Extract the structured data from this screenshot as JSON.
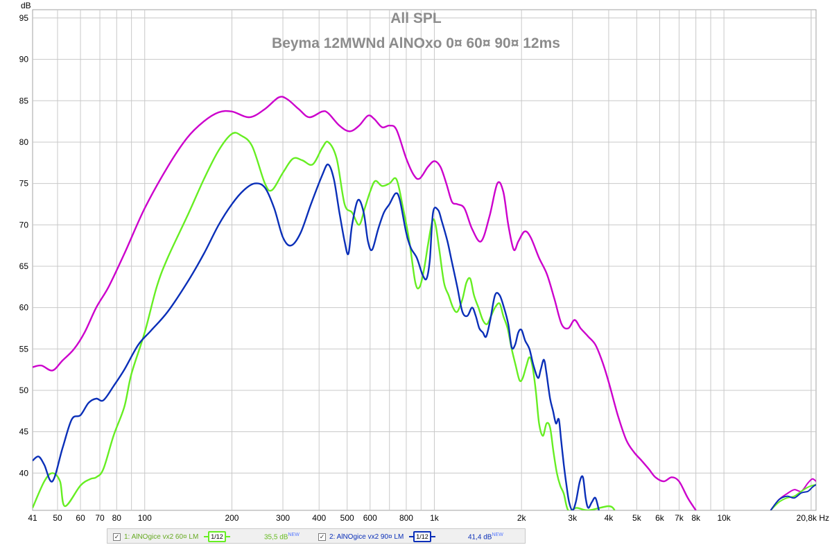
{
  "chart_data": {
    "type": "line",
    "title": "All SPL",
    "subtitle": "Beyma 12MWNd AlNOxo 0¤ 60¤ 90¤ 12ms",
    "ylabel": "dB",
    "xunit": "Hz",
    "xscale": "log",
    "xlim": [
      41,
      20800
    ],
    "ylim": [
      35.5,
      96
    ],
    "grid": true,
    "legend_position": "bottom-left",
    "yticks": [
      95,
      90,
      85,
      80,
      75,
      70,
      65,
      60,
      55,
      50,
      45,
      40
    ],
    "xticks": [
      {
        "v": 41,
        "t": "41"
      },
      {
        "v": 50,
        "t": "50"
      },
      {
        "v": 60,
        "t": "60"
      },
      {
        "v": 70,
        "t": "70"
      },
      {
        "v": 80,
        "t": "80"
      },
      {
        "v": 100,
        "t": "100"
      },
      {
        "v": 200,
        "t": "200"
      },
      {
        "v": 300,
        "t": "300"
      },
      {
        "v": 400,
        "t": "400"
      },
      {
        "v": 500,
        "t": "500"
      },
      {
        "v": 600,
        "t": "600"
      },
      {
        "v": 800,
        "t": "800"
      },
      {
        "v": 1000,
        "t": "1k"
      },
      {
        "v": 2000,
        "t": "2k"
      },
      {
        "v": 3000,
        "t": "3k"
      },
      {
        "v": 4000,
        "t": "4k"
      },
      {
        "v": 5000,
        "t": "5k"
      },
      {
        "v": 6000,
        "t": "6k"
      },
      {
        "v": 7000,
        "t": "7k"
      },
      {
        "v": 8000,
        "t": "8k"
      },
      {
        "v": 10000,
        "t": "10k"
      },
      {
        "v": 20800,
        "t": "20,8k Hz"
      }
    ],
    "series": [
      {
        "color": "#cc00cc",
        "points": [
          [
            41,
            52.8
          ],
          [
            44,
            53
          ],
          [
            48,
            52.4
          ],
          [
            52,
            53.6
          ],
          [
            57,
            55
          ],
          [
            62,
            57
          ],
          [
            68,
            60
          ],
          [
            75,
            62.5
          ],
          [
            85,
            66.5
          ],
          [
            100,
            72
          ],
          [
            120,
            77
          ],
          [
            140,
            80.5
          ],
          [
            160,
            82.5
          ],
          [
            180,
            83.6
          ],
          [
            200,
            83.7
          ],
          [
            230,
            83
          ],
          [
            260,
            84
          ],
          [
            290,
            85.4
          ],
          [
            310,
            85.2
          ],
          [
            340,
            84
          ],
          [
            370,
            83
          ],
          [
            410,
            83.7
          ],
          [
            430,
            83.5
          ],
          [
            470,
            82
          ],
          [
            510,
            81.3
          ],
          [
            550,
            82
          ],
          [
            590,
            83.2
          ],
          [
            620,
            82.8
          ],
          [
            660,
            81.8
          ],
          [
            700,
            82
          ],
          [
            740,
            81.5
          ],
          [
            800,
            78
          ],
          [
            850,
            76
          ],
          [
            890,
            75.6
          ],
          [
            950,
            77
          ],
          [
            1000,
            77.7
          ],
          [
            1050,
            77
          ],
          [
            1100,
            75
          ],
          [
            1150,
            72.8
          ],
          [
            1200,
            72.5
          ],
          [
            1270,
            72
          ],
          [
            1350,
            69.5
          ],
          [
            1450,
            68
          ],
          [
            1550,
            71
          ],
          [
            1650,
            75
          ],
          [
            1730,
            74
          ],
          [
            1800,
            70
          ],
          [
            1880,
            67
          ],
          [
            1950,
            68
          ],
          [
            2050,
            69.2
          ],
          [
            2150,
            68.5
          ],
          [
            2300,
            66
          ],
          [
            2450,
            64
          ],
          [
            2600,
            61
          ],
          [
            2750,
            58
          ],
          [
            2900,
            57.5
          ],
          [
            3050,
            58.5
          ],
          [
            3200,
            57.5
          ],
          [
            3400,
            56.5
          ],
          [
            3600,
            55.5
          ],
          [
            3800,
            53.5
          ],
          [
            4000,
            51
          ],
          [
            4300,
            47
          ],
          [
            4600,
            44
          ],
          [
            4900,
            42.5
          ],
          [
            5200,
            41.5
          ],
          [
            5500,
            40.5
          ],
          [
            5800,
            39.5
          ],
          [
            6200,
            39
          ],
          [
            6600,
            39.5
          ],
          [
            7000,
            39
          ],
          [
            7500,
            37
          ],
          [
            8000,
            35.5
          ]
        ]
      },
      {
        "color": "#66ee22",
        "points": [
          [
            41,
            35.8
          ],
          [
            45,
            39
          ],
          [
            48,
            40
          ],
          [
            51,
            39
          ],
          [
            53,
            36
          ],
          [
            60,
            38.5
          ],
          [
            65,
            39.3
          ],
          [
            68,
            39.5
          ],
          [
            72,
            40.5
          ],
          [
            78,
            44.5
          ],
          [
            85,
            48
          ],
          [
            90,
            52
          ],
          [
            100,
            57
          ],
          [
            110,
            62.5
          ],
          [
            120,
            66
          ],
          [
            140,
            71
          ],
          [
            160,
            75.5
          ],
          [
            180,
            79
          ],
          [
            200,
            81
          ],
          [
            215,
            80.8
          ],
          [
            235,
            79.5
          ],
          [
            260,
            75
          ],
          [
            275,
            74.2
          ],
          [
            300,
            76.3
          ],
          [
            325,
            78
          ],
          [
            350,
            77.8
          ],
          [
            380,
            77.3
          ],
          [
            410,
            79.3
          ],
          [
            430,
            80
          ],
          [
            460,
            78
          ],
          [
            490,
            72.5
          ],
          [
            520,
            71.5
          ],
          [
            550,
            70
          ],
          [
            575,
            72
          ],
          [
            600,
            74
          ],
          [
            625,
            75.3
          ],
          [
            660,
            74.7
          ],
          [
            700,
            75
          ],
          [
            740,
            75.5
          ],
          [
            780,
            72
          ],
          [
            820,
            68
          ],
          [
            860,
            63
          ],
          [
            890,
            62.5
          ],
          [
            920,
            64.5
          ],
          [
            950,
            67.5
          ],
          [
            985,
            70.5
          ],
          [
            1010,
            70
          ],
          [
            1040,
            67
          ],
          [
            1080,
            63
          ],
          [
            1120,
            61.5
          ],
          [
            1160,
            60
          ],
          [
            1200,
            59.5
          ],
          [
            1250,
            61
          ],
          [
            1290,
            63
          ],
          [
            1330,
            63.5
          ],
          [
            1370,
            61.5
          ],
          [
            1420,
            60
          ],
          [
            1470,
            58.5
          ],
          [
            1520,
            58
          ],
          [
            1570,
            59
          ],
          [
            1620,
            60
          ],
          [
            1680,
            60.5
          ],
          [
            1730,
            59
          ],
          [
            1790,
            57.5
          ],
          [
            1850,
            55
          ],
          [
            1910,
            53
          ],
          [
            1970,
            51.2
          ],
          [
            2020,
            51.5
          ],
          [
            2080,
            53
          ],
          [
            2130,
            54
          ],
          [
            2180,
            53
          ],
          [
            2240,
            50
          ],
          [
            2300,
            46
          ],
          [
            2370,
            44.5
          ],
          [
            2440,
            46
          ],
          [
            2510,
            45.5
          ],
          [
            2580,
            42.5
          ],
          [
            2650,
            40
          ],
          [
            2720,
            38.5
          ],
          [
            2800,
            37.5
          ],
          [
            2900,
            35.5
          ],
          [
            3100,
            35.8
          ],
          [
            3400,
            35.5
          ],
          [
            4000,
            36
          ],
          [
            4200,
            35.5
          ]
        ]
      },
      {
        "color": "#0a2fb8",
        "points": [
          [
            41,
            41.5
          ],
          [
            43,
            42
          ],
          [
            45,
            41
          ],
          [
            48,
            39
          ],
          [
            52,
            43
          ],
          [
            56,
            46.5
          ],
          [
            60,
            47
          ],
          [
            64,
            48.5
          ],
          [
            68,
            49
          ],
          [
            72,
            48.8
          ],
          [
            78,
            50.5
          ],
          [
            85,
            52.5
          ],
          [
            95,
            55.5
          ],
          [
            105,
            57.2
          ],
          [
            120,
            59.5
          ],
          [
            140,
            63
          ],
          [
            160,
            66.5
          ],
          [
            180,
            70
          ],
          [
            200,
            72.5
          ],
          [
            220,
            74.2
          ],
          [
            240,
            75
          ],
          [
            260,
            74.5
          ],
          [
            280,
            72
          ],
          [
            300,
            68.5
          ],
          [
            320,
            67.5
          ],
          [
            345,
            69
          ],
          [
            375,
            72.5
          ],
          [
            410,
            76
          ],
          [
            430,
            77.3
          ],
          [
            450,
            75.5
          ],
          [
            470,
            71.5
          ],
          [
            490,
            68
          ],
          [
            505,
            66.5
          ],
          [
            520,
            70
          ],
          [
            545,
            73
          ],
          [
            570,
            71.5
          ],
          [
            590,
            68
          ],
          [
            610,
            67
          ],
          [
            640,
            69.5
          ],
          [
            670,
            71.5
          ],
          [
            700,
            72.5
          ],
          [
            735,
            73.8
          ],
          [
            760,
            73
          ],
          [
            800,
            69
          ],
          [
            830,
            67.2
          ],
          [
            870,
            66
          ],
          [
            910,
            64
          ],
          [
            940,
            63.5
          ],
          [
            965,
            65.8
          ],
          [
            990,
            71.5
          ],
          [
            1030,
            71.8
          ],
          [
            1060,
            70.5
          ],
          [
            1110,
            68
          ],
          [
            1150,
            65.5
          ],
          [
            1200,
            62.5
          ],
          [
            1250,
            59.5
          ],
          [
            1300,
            59
          ],
          [
            1350,
            60
          ],
          [
            1390,
            59
          ],
          [
            1430,
            57.5
          ],
          [
            1470,
            57
          ],
          [
            1510,
            56.5
          ],
          [
            1560,
            58.5
          ],
          [
            1620,
            61.5
          ],
          [
            1680,
            61.5
          ],
          [
            1740,
            60
          ],
          [
            1800,
            58
          ],
          [
            1850,
            55.2
          ],
          [
            1900,
            55.5
          ],
          [
            1950,
            57
          ],
          [
            2000,
            57.3
          ],
          [
            2060,
            56
          ],
          [
            2130,
            55
          ],
          [
            2200,
            53
          ],
          [
            2280,
            51.5
          ],
          [
            2330,
            52.5
          ],
          [
            2390,
            53.7
          ],
          [
            2440,
            52
          ],
          [
            2510,
            49
          ],
          [
            2570,
            47.5
          ],
          [
            2630,
            46
          ],
          [
            2690,
            46.5
          ],
          [
            2740,
            44
          ],
          [
            2800,
            41
          ],
          [
            2860,
            38.5
          ],
          [
            2920,
            36.5
          ],
          [
            3000,
            35.5
          ],
          [
            3080,
            36.5
          ],
          [
            3180,
            39
          ],
          [
            3260,
            39.5
          ],
          [
            3330,
            37
          ],
          [
            3400,
            35.8
          ],
          [
            3500,
            36.5
          ],
          [
            3600,
            37
          ],
          [
            3700,
            35.5
          ]
        ]
      }
    ],
    "tail_series": [
      {
        "color": "#cc00cc",
        "points": [
          [
            14500,
            35.5
          ],
          [
            15500,
            36.8
          ],
          [
            16500,
            37.5
          ],
          [
            17500,
            38
          ],
          [
            18500,
            37.8
          ],
          [
            19500,
            38.8
          ],
          [
            20200,
            39.3
          ],
          [
            20800,
            39
          ]
        ]
      },
      {
        "color": "#66ee22",
        "points": [
          [
            14500,
            35.5
          ],
          [
            15500,
            36.5
          ],
          [
            16500,
            37
          ],
          [
            17500,
            37.2
          ],
          [
            18500,
            37.8
          ],
          [
            19500,
            38.3
          ],
          [
            20200,
            38.5
          ],
          [
            20800,
            38.6
          ]
        ]
      },
      {
        "color": "#0a2fb8",
        "points": [
          [
            14500,
            35.5
          ],
          [
            15500,
            36.8
          ],
          [
            16500,
            37.2
          ],
          [
            17500,
            37
          ],
          [
            18500,
            37.6
          ],
          [
            19500,
            37.8
          ],
          [
            20200,
            38.3
          ],
          [
            20800,
            38.6
          ]
        ]
      }
    ]
  },
  "legend": {
    "items": [
      {
        "check": "✓",
        "name": "1: AlNOgice vx2 60¤ LM",
        "smoothing": "1/12",
        "level": "35,5 dB",
        "badge": "NEW",
        "color": "#66ee22"
      },
      {
        "check": "✓",
        "name": "2: AlNOgice vx2 90¤ LM",
        "smoothing": "1/12",
        "level": "41,4 dB",
        "badge": "NEW",
        "color": "#0a2fb8"
      }
    ]
  }
}
